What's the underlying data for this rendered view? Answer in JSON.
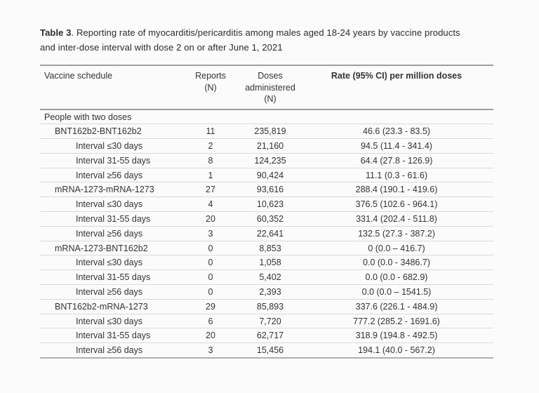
{
  "page": {
    "background": "#fbfbfb",
    "text_color": "#333333",
    "rule_dark": "#9e9e9e",
    "rule_light": "#d9d9d9"
  },
  "title": {
    "bold_label": "Table 3",
    "line1_rest": ". Reporting rate of myocarditis/pericarditis among males aged 18-24 years by vaccine products",
    "line2": "and inter-dose interval with dose 2 on or after June 1, 2021"
  },
  "table": {
    "header": {
      "vaccine_schedule": "Vaccine schedule",
      "reports": [
        "Reports",
        "(N)"
      ],
      "doses": [
        "Doses",
        "administered",
        "(N)"
      ],
      "rate": "Rate (95% CI) per million doses"
    },
    "rows": [
      {
        "label": "People with two doses",
        "indent": 0,
        "reports": "",
        "doses": "",
        "rate": ""
      },
      {
        "label": "BNT162b2-BNT162b2",
        "indent": 1,
        "reports": "11",
        "doses": "235,819",
        "rate": "46.6 (23.3 - 83.5)"
      },
      {
        "label": "Interval ≤30 days",
        "indent": 2,
        "reports": "2",
        "doses": "21,160",
        "rate": "94.5 (11.4 - 341.4)"
      },
      {
        "label": "Interval 31-55 days",
        "indent": 2,
        "reports": "8",
        "doses": "124,235",
        "rate": "64.4 (27.8 - 126.9)"
      },
      {
        "label": "Interval ≥56 days",
        "indent": 2,
        "reports": "1",
        "doses": "90,424",
        "rate": "11.1 (0.3 - 61.6)"
      },
      {
        "label": "mRNA-1273-mRNA-1273",
        "indent": 1,
        "reports": "27",
        "doses": "93,616",
        "rate": "288.4 (190.1 - 419.6)"
      },
      {
        "label": "Interval ≤30 days",
        "indent": 2,
        "reports": "4",
        "doses": "10,623",
        "rate": "376.5 (102.6 - 964.1)"
      },
      {
        "label": "Interval 31-55 days",
        "indent": 2,
        "reports": "20",
        "doses": "60,352",
        "rate": "331.4 (202.4 - 511.8)"
      },
      {
        "label": "Interval ≥56 days",
        "indent": 2,
        "reports": "3",
        "doses": "22,641",
        "rate": "132.5 (27.3 - 387.2)"
      },
      {
        "label": "mRNA-1273-BNT162b2",
        "indent": 1,
        "reports": "0",
        "doses": "8,853",
        "rate": "0 (0.0 – 416.7)"
      },
      {
        "label": "Interval ≤30 days",
        "indent": 2,
        "reports": "0",
        "doses": "1,058",
        "rate": "0.0 (0.0 - 3486.7)"
      },
      {
        "label": "Interval 31-55 days",
        "indent": 2,
        "reports": "0",
        "doses": "5,402",
        "rate": "0.0 (0.0 - 682.9)"
      },
      {
        "label": "Interval ≥56 days",
        "indent": 2,
        "reports": "0",
        "doses": "2,393",
        "rate": "0.0 (0.0 – 1541.5)"
      },
      {
        "label": "BNT162b2-mRNA-1273",
        "indent": 1,
        "reports": "29",
        "doses": "85,893",
        "rate": "337.6 (226.1 - 484.9)"
      },
      {
        "label": "Interval ≤30 days",
        "indent": 2,
        "reports": "6",
        "doses": "7,720",
        "rate": "777.2 (285.2 - 1691.6)"
      },
      {
        "label": "Interval 31-55 days",
        "indent": 2,
        "reports": "20",
        "doses": "62,717",
        "rate": "318.9 (194.8 - 492.5)"
      },
      {
        "label": "Interval ≥56 days",
        "indent": 2,
        "reports": "3",
        "doses": "15,456",
        "rate": "194.1 (40.0 - 567.2)"
      }
    ]
  }
}
